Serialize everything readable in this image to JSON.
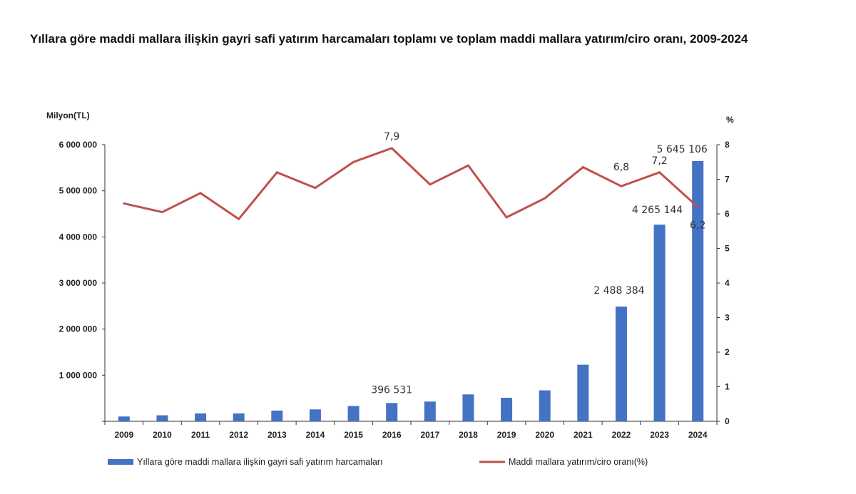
{
  "chart_data": {
    "type": "bar+line",
    "title": "Yıllara göre maddi mallara ilişkin gayri safi yatırım harcamaları toplamı ve toplam maddi mallara yatırım/ciro oranı, 2009-2024",
    "ylabel_left": "Milyon(TL)",
    "ylabel_right": "%",
    "ylim_left": [
      0,
      6000000
    ],
    "ylim_right": [
      0,
      8
    ],
    "yticks_left": [
      "",
      "1 000 000",
      "2 000 000",
      "3 000 000",
      "4 000 000",
      "5 000 000",
      "6 000 000"
    ],
    "yticks_right": [
      "0",
      "1",
      "2",
      "3",
      "4",
      "5",
      "6",
      "7",
      "8"
    ],
    "categories": [
      "2009",
      "2010",
      "2011",
      "2012",
      "2013",
      "2014",
      "2015",
      "2016",
      "2017",
      "2018",
      "2019",
      "2020",
      "2021",
      "2022",
      "2023",
      "2024"
    ],
    "grid": false,
    "legend_position": "bottom",
    "series": [
      {
        "name": "Yıllara göre maddi mallara ilişkin gayri safi yatırım harcamaları",
        "type": "bar",
        "axis": "left",
        "color": "#4472C4",
        "values": [
          104000,
          130000,
          170000,
          170000,
          232000,
          258000,
          331000,
          396531,
          428000,
          583000,
          510000,
          671000,
          1227000,
          2488384,
          4265144,
          5645106
        ],
        "labels": {
          "2016": "396 531",
          "2022": "2 488 384",
          "2023": "4 265 144",
          "2024": "5 645 106"
        }
      },
      {
        "name": "Maddi mallara yatırım/ciro oranı(%)",
        "type": "line",
        "axis": "right",
        "color": "#C0504D",
        "values": [
          6.3,
          6.05,
          6.6,
          5.85,
          7.2,
          6.75,
          7.5,
          7.9,
          6.85,
          7.4,
          5.9,
          6.45,
          7.35,
          6.8,
          7.2,
          6.2
        ],
        "labels": {
          "2016": "7,9",
          "2022": "6,8",
          "2023": "7,2",
          "2024": "6,2"
        }
      }
    ]
  }
}
